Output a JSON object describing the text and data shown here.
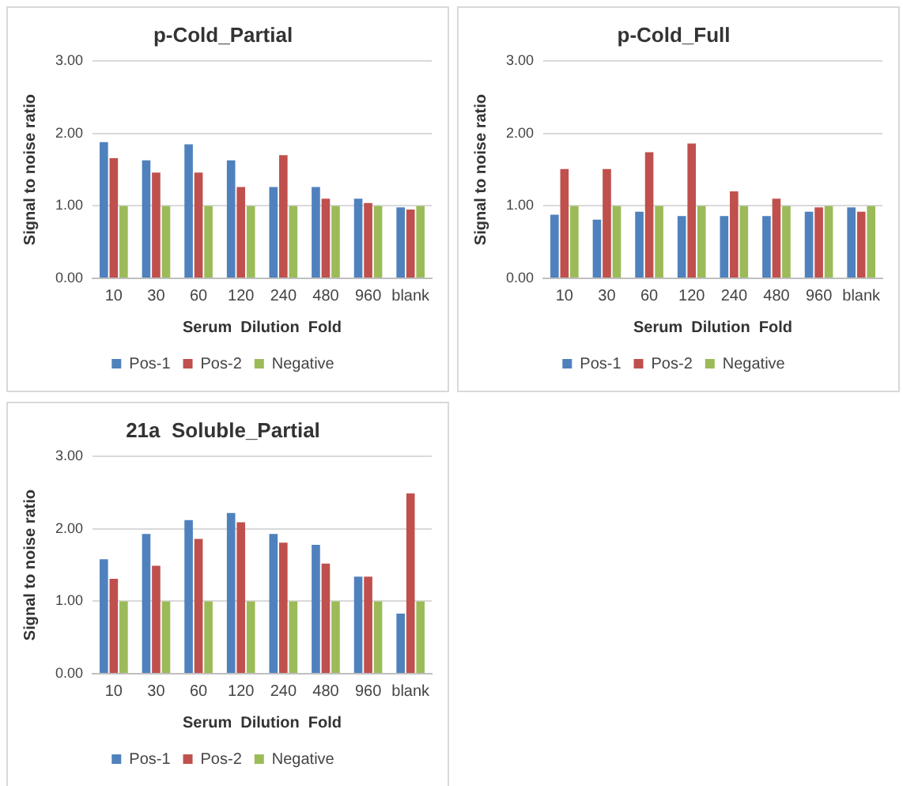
{
  "chart_data": [
    {
      "type": "bar",
      "title": "p-Cold_Partial",
      "xlabel": "Serum  Dilution  Fold",
      "ylabel": "Signal to noise ratio",
      "categories": [
        "10",
        "30",
        "60",
        "120",
        "240",
        "480",
        "960",
        "blank"
      ],
      "series": [
        {
          "name": "Pos-1",
          "color": "#4f81bd",
          "values": [
            1.88,
            1.63,
            1.85,
            1.63,
            1.26,
            1.26,
            1.1,
            0.98
          ]
        },
        {
          "name": "Pos-2",
          "color": "#c0504d",
          "values": [
            1.66,
            1.46,
            1.46,
            1.26,
            1.7,
            1.1,
            1.04,
            0.95
          ]
        },
        {
          "name": "Negative",
          "color": "#9bbb59",
          "values": [
            1.0,
            1.0,
            1.0,
            1.0,
            1.0,
            1.0,
            1.0,
            1.0
          ]
        }
      ],
      "ylim": [
        0,
        3
      ],
      "yticks": [
        {
          "value": 0,
          "label": "0.00"
        },
        {
          "value": 1,
          "label": "1.00"
        },
        {
          "value": 2,
          "label": "2.00"
        },
        {
          "value": 3,
          "label": "3.00"
        }
      ],
      "grid": "y",
      "legend": "bottom"
    },
    {
      "type": "bar",
      "title": "p-Cold_Full",
      "xlabel": "Serum  Dilution  Fold",
      "ylabel": "Signal to noise ratio",
      "categories": [
        "10",
        "30",
        "60",
        "120",
        "240",
        "480",
        "960",
        "blank"
      ],
      "series": [
        {
          "name": "Pos-1",
          "color": "#4f81bd",
          "values": [
            0.88,
            0.81,
            0.92,
            0.86,
            0.86,
            0.86,
            0.92,
            0.98
          ]
        },
        {
          "name": "Pos-2",
          "color": "#c0504d",
          "values": [
            1.51,
            1.51,
            1.74,
            1.86,
            1.2,
            1.1,
            0.98,
            0.92
          ]
        },
        {
          "name": "Negative",
          "color": "#9bbb59",
          "values": [
            1.0,
            1.0,
            1.0,
            1.0,
            1.0,
            1.0,
            1.0,
            1.0
          ]
        }
      ],
      "ylim": [
        0,
        3
      ],
      "yticks": [
        {
          "value": 0,
          "label": "0.00"
        },
        {
          "value": 1,
          "label": "1.00"
        },
        {
          "value": 2,
          "label": "2.00"
        },
        {
          "value": 3,
          "label": "3.00"
        }
      ],
      "grid": "y",
      "legend": "bottom"
    },
    {
      "type": "bar",
      "title": "21a  Soluble_Partial",
      "xlabel": "Serum  Dilution  Fold",
      "ylabel": "Signal to noise ratio",
      "categories": [
        "10",
        "30",
        "60",
        "120",
        "240",
        "480",
        "960",
        "blank"
      ],
      "series": [
        {
          "name": "Pos-1",
          "color": "#4f81bd",
          "values": [
            1.58,
            1.93,
            2.12,
            2.22,
            1.93,
            1.78,
            1.34,
            0.83
          ]
        },
        {
          "name": "Pos-2",
          "color": "#c0504d",
          "values": [
            1.31,
            1.49,
            1.86,
            2.09,
            1.81,
            1.52,
            1.34,
            2.49
          ]
        },
        {
          "name": "Negative",
          "color": "#9bbb59",
          "values": [
            1.0,
            1.0,
            1.0,
            1.0,
            1.0,
            1.0,
            1.0,
            1.0
          ]
        }
      ],
      "ylim": [
        0,
        3
      ],
      "yticks": [
        {
          "value": 0,
          "label": "0.00"
        },
        {
          "value": 1,
          "label": "1.00"
        },
        {
          "value": 2,
          "label": "2.00"
        },
        {
          "value": 3,
          "label": "3.00"
        }
      ],
      "grid": "y",
      "legend": "bottom"
    }
  ]
}
